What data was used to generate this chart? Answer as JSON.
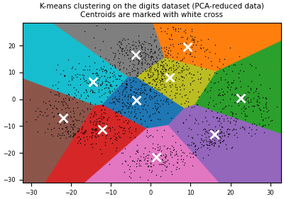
{
  "title_line1": "K-means clustering on the digits dataset (PCA-reduced data)",
  "title_line2": "Centroids are marked with white cross",
  "n_clusters": 10,
  "random_state": 42,
  "n_components": 2,
  "figsize": [
    4.0,
    2.8
  ],
  "dpi": 100,
  "bg_color": "white",
  "title_fontsize": 7.5,
  "centroid_marker": "x",
  "centroid_color": "white",
  "centroid_size": 80,
  "centroid_lw": 2,
  "point_color": "k",
  "point_size": 1,
  "point_alpha": 1.0,
  "cluster_colors": [
    "#3182bd",
    "#e6550d",
    "#fdae6b",
    "#e7969c",
    "#8ca252",
    "#ad494a",
    "#8c6d31",
    "#843c39",
    "#7b4173",
    "#ce6dbd"
  ]
}
